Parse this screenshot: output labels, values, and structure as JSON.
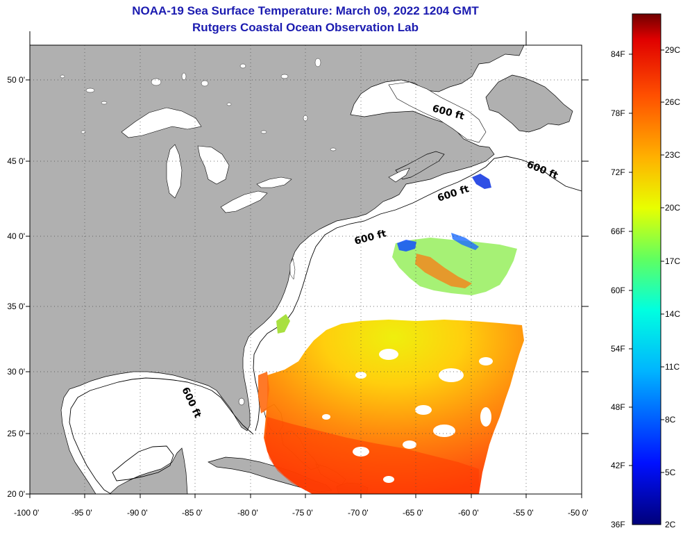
{
  "title": {
    "line1": "NOAA-19 Sea Surface Temperature:  March 09, 2022 1204 GMT",
    "line2": "Rutgers Coastal Ocean Observation Lab"
  },
  "map": {
    "lat_ticks": [
      "50 0'",
      "45 0'",
      "40 0'",
      "35 0'",
      "30 0'",
      "25 0'",
      "20 0'"
    ],
    "lon_ticks": [
      "-100 0'",
      "-95 0'",
      "-90 0'",
      "-85 0'",
      "-80 0'",
      "-75 0'",
      "-70 0'",
      "-65 0'",
      "-60 0'",
      "-55 0'",
      "-50 0'"
    ],
    "contour_labels": [
      "600 ft",
      "600 ft",
      "600 ft",
      "600 ft",
      "600 ft"
    ],
    "land_color": "#b0b0b0",
    "water_color": "#ffffff"
  },
  "colorbar": {
    "fahrenheit": [
      "84F",
      "78F",
      "72F",
      "66F",
      "60F",
      "54F",
      "48F",
      "42F",
      "36F"
    ],
    "celsius": [
      "29C",
      "26C",
      "23C",
      "20C",
      "17C",
      "14C",
      "11C",
      "8C",
      "5C",
      "2C"
    ]
  }
}
